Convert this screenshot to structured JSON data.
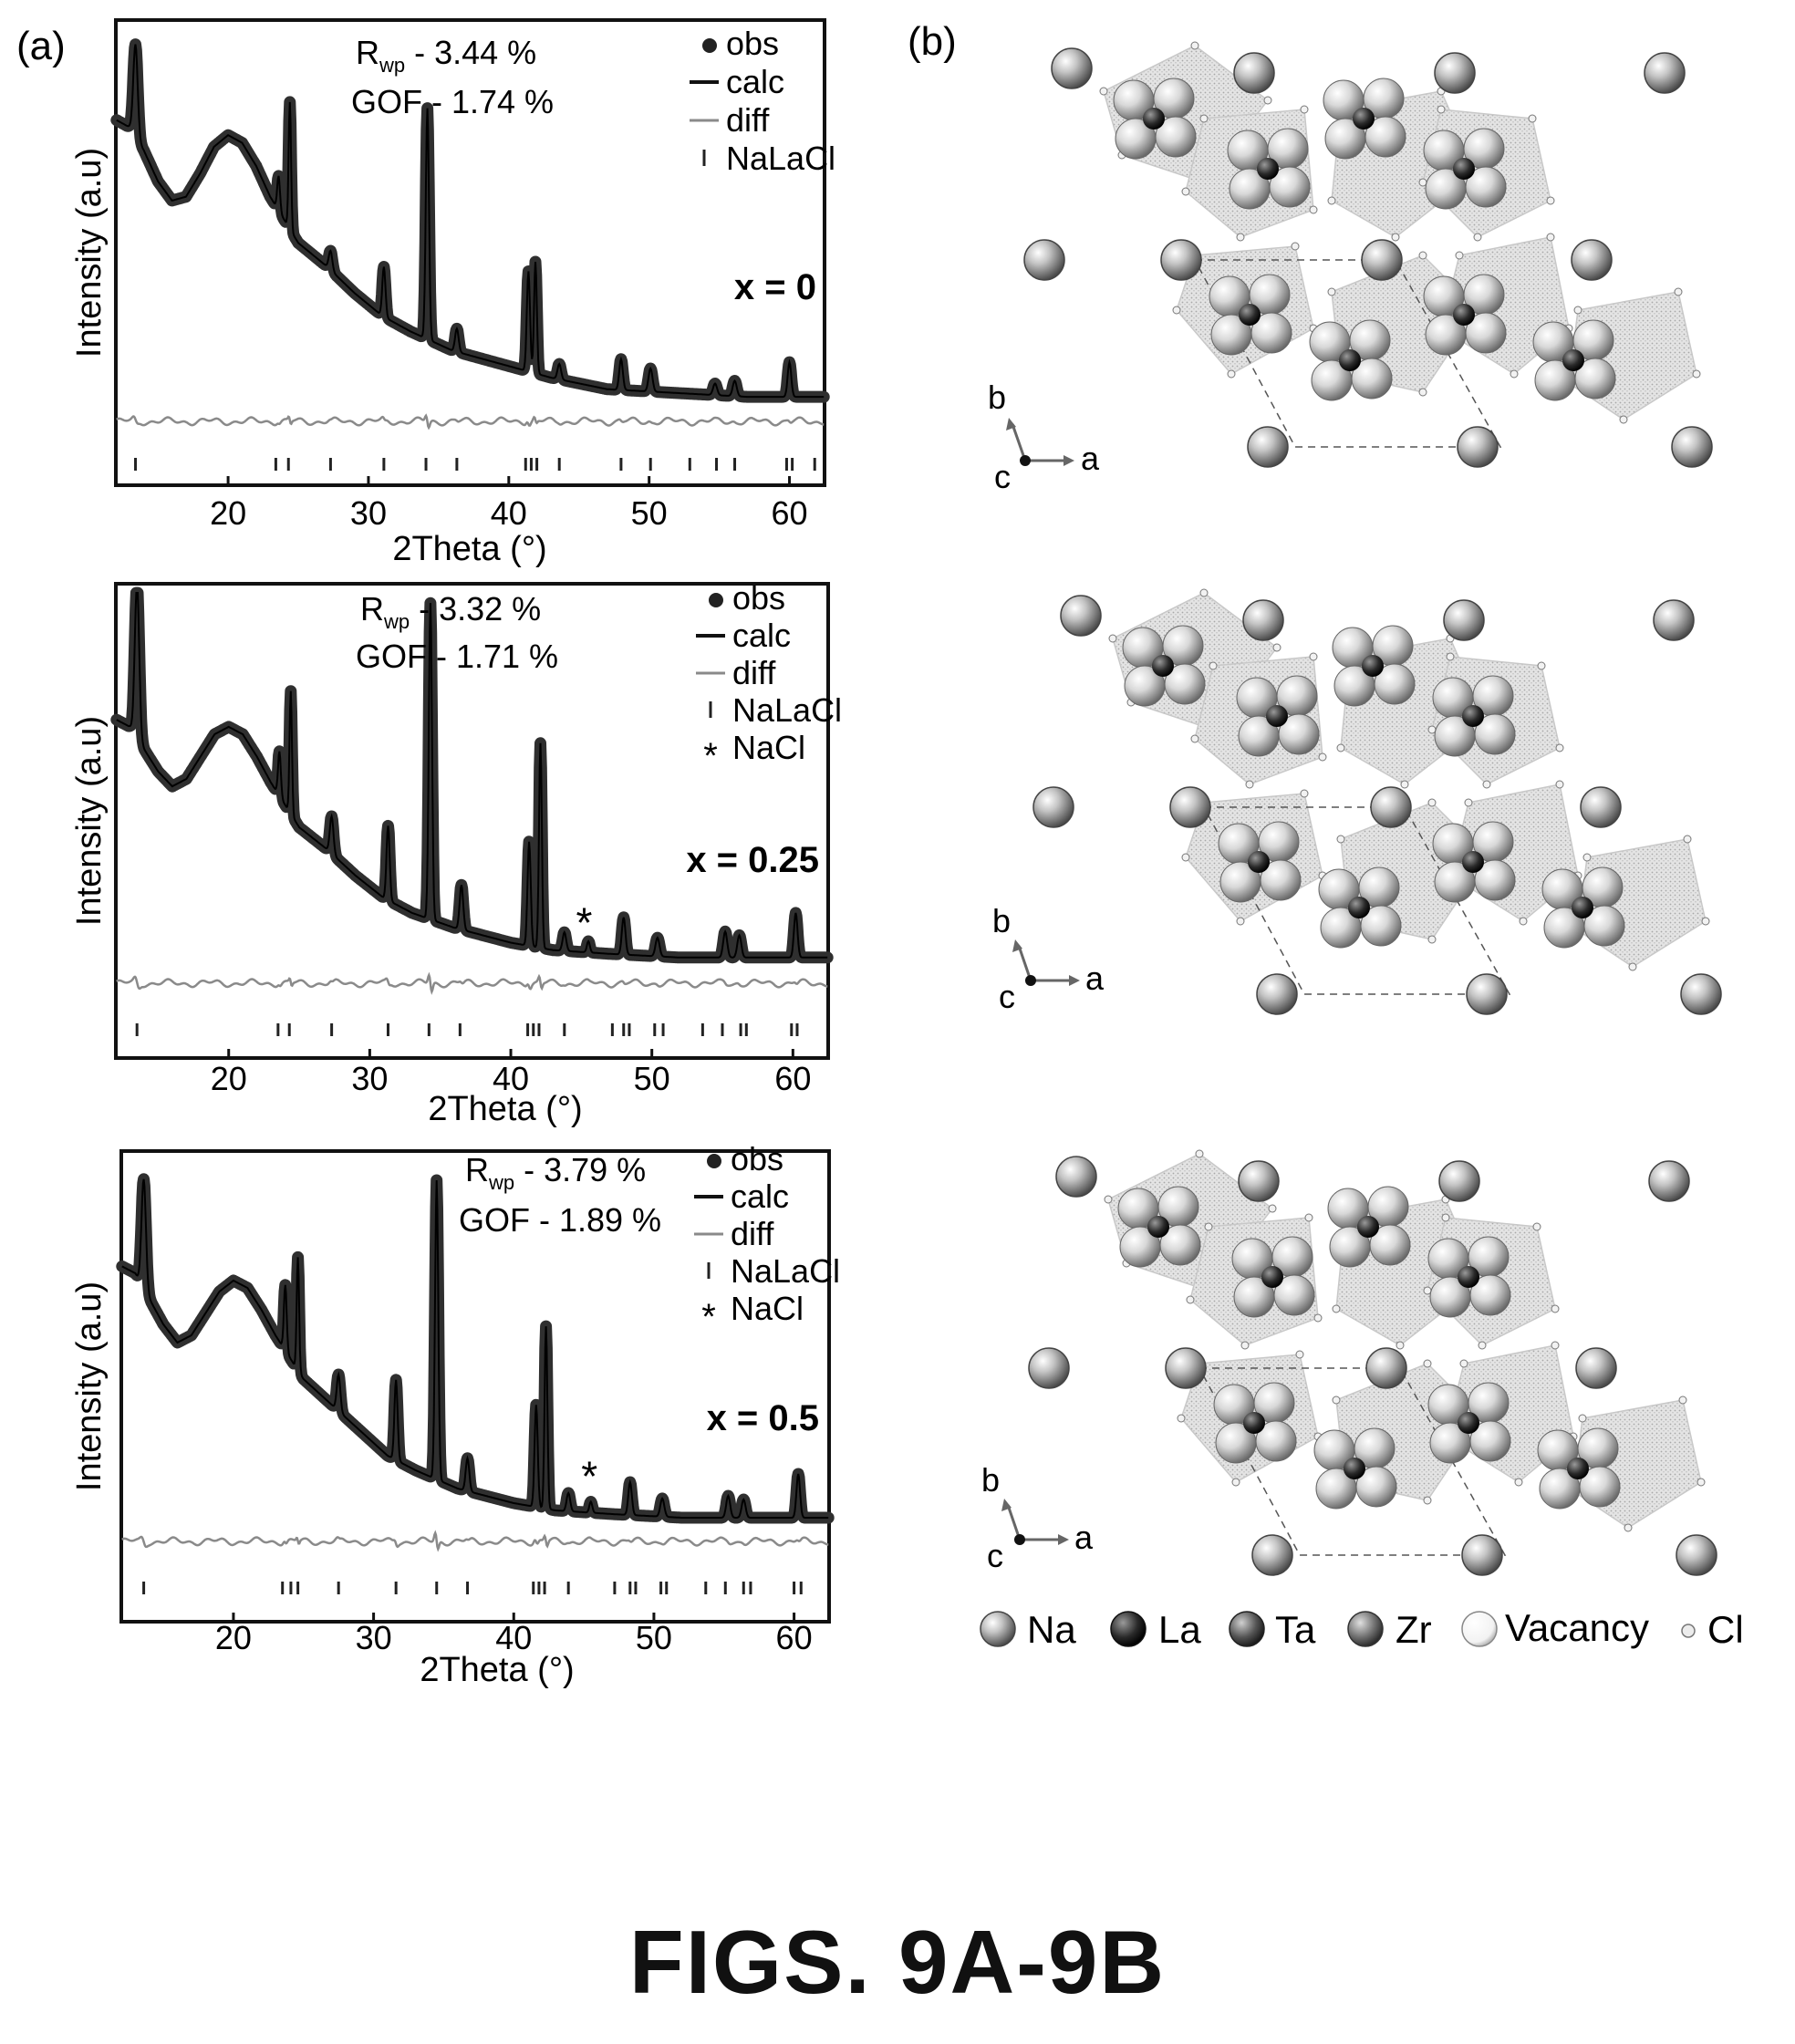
{
  "panel_a_label": "(a)",
  "panel_b_label": "(b)",
  "figure_caption": "FIGS. 9A-9B",
  "chart_data": [
    {
      "type": "line",
      "xlabel": "2Theta (°)",
      "ylabel": "Intensity (a.u)",
      "xlim": [
        12,
        62.5
      ],
      "xticks": [
        20,
        30,
        40,
        50,
        60
      ],
      "stats": {
        "rwp": "R",
        "rwp_sub": "wp",
        "rwp_value": " - 3.44 %",
        "gof": "GOF - 1.74 %"
      },
      "composition": "x = 0",
      "legend": [
        {
          "symbol": "dot",
          "label": "obs"
        },
        {
          "symbol": "line-dark",
          "label": "calc"
        },
        {
          "symbol": "line-light",
          "label": "diff"
        },
        {
          "symbol": "tick",
          "label": "NaLaCl"
        }
      ],
      "background": [
        [
          12,
          0.76
        ],
        [
          13,
          0.74
        ],
        [
          14,
          0.68
        ],
        [
          15,
          0.6
        ],
        [
          16,
          0.55
        ],
        [
          17,
          0.56
        ],
        [
          18,
          0.62
        ],
        [
          19,
          0.69
        ],
        [
          20,
          0.72
        ],
        [
          21,
          0.7
        ],
        [
          22,
          0.64
        ],
        [
          23,
          0.56
        ],
        [
          24,
          0.5
        ],
        [
          25,
          0.44
        ],
        [
          27,
          0.38
        ],
        [
          29,
          0.31
        ],
        [
          31,
          0.25
        ],
        [
          33,
          0.21
        ],
        [
          36,
          0.16
        ],
        [
          40,
          0.12
        ],
        [
          43,
          0.09
        ],
        [
          47,
          0.06
        ],
        [
          52,
          0.05
        ],
        [
          57,
          0.04
        ],
        [
          62.5,
          0.04
        ]
      ],
      "peaks": [
        [
          13.4,
          0.24,
          0.22
        ],
        [
          23.6,
          0.09,
          0.14
        ],
        [
          24.4,
          0.33,
          0.12
        ],
        [
          27.3,
          0.05,
          0.18
        ],
        [
          31.1,
          0.13,
          0.16
        ],
        [
          34.2,
          0.6,
          0.16
        ],
        [
          36.3,
          0.06,
          0.18
        ],
        [
          41.4,
          0.26,
          0.16
        ],
        [
          41.9,
          0.29,
          0.14
        ],
        [
          43.6,
          0.04,
          0.18
        ],
        [
          48.0,
          0.08,
          0.18
        ],
        [
          50.1,
          0.06,
          0.2
        ],
        [
          54.7,
          0.03,
          0.2
        ],
        [
          56.1,
          0.04,
          0.2
        ],
        [
          60.0,
          0.09,
          0.18
        ]
      ],
      "reflections": [
        13.4,
        23.4,
        24.3,
        27.3,
        31.1,
        34.1,
        36.3,
        41.2,
        41.6,
        42.0,
        43.6,
        48.0,
        50.1,
        52.9,
        54.8,
        56.1,
        59.8,
        60.2,
        61.8
      ],
      "impurity_peaks": []
    },
    {
      "type": "line",
      "xlabel": "2Theta (°)",
      "ylabel": "Intensity (a.u)",
      "xlim": [
        12,
        62.5
      ],
      "xticks": [
        20,
        30,
        40,
        50,
        60
      ],
      "stats": {
        "rwp": "R",
        "rwp_sub": "wp",
        "rwp_value": " - 3.32 %",
        "gof": "GOF - 1.71 %"
      },
      "composition": "x = 0.25",
      "legend": [
        {
          "symbol": "dot",
          "label": "obs"
        },
        {
          "symbol": "line-dark",
          "label": "calc"
        },
        {
          "symbol": "line-light",
          "label": "diff"
        },
        {
          "symbol": "tick",
          "label": "NaLaCl"
        },
        {
          "symbol": "star",
          "label": "NaCl"
        }
      ],
      "background": [
        [
          12,
          0.66
        ],
        [
          13,
          0.64
        ],
        [
          14,
          0.58
        ],
        [
          15,
          0.52
        ],
        [
          16,
          0.48
        ],
        [
          17,
          0.5
        ],
        [
          18,
          0.56
        ],
        [
          19,
          0.62
        ],
        [
          20,
          0.64
        ],
        [
          21,
          0.62
        ],
        [
          22,
          0.56
        ],
        [
          23,
          0.49
        ],
        [
          24,
          0.43
        ],
        [
          25,
          0.37
        ],
        [
          27,
          0.31
        ],
        [
          29,
          0.24
        ],
        [
          31,
          0.18
        ],
        [
          33,
          0.14
        ],
        [
          36,
          0.1
        ],
        [
          40,
          0.06
        ],
        [
          43,
          0.04
        ],
        [
          47,
          0.03
        ],
        [
          52,
          0.02
        ],
        [
          57,
          0.02
        ],
        [
          62.5,
          0.02
        ]
      ],
      "peaks": [
        [
          13.5,
          0.42,
          0.22
        ],
        [
          23.6,
          0.12,
          0.14
        ],
        [
          24.4,
          0.33,
          0.12
        ],
        [
          27.3,
          0.1,
          0.18
        ],
        [
          31.3,
          0.2,
          0.16
        ],
        [
          34.3,
          0.85,
          0.16
        ],
        [
          36.5,
          0.12,
          0.18
        ],
        [
          41.3,
          0.28,
          0.16
        ],
        [
          42.1,
          0.55,
          0.14
        ],
        [
          43.8,
          0.05,
          0.18
        ],
        [
          45.5,
          0.03,
          0.15
        ],
        [
          48.0,
          0.1,
          0.18
        ],
        [
          50.4,
          0.05,
          0.2
        ],
        [
          55.2,
          0.07,
          0.2
        ],
        [
          56.2,
          0.06,
          0.2
        ],
        [
          60.2,
          0.12,
          0.18
        ]
      ],
      "reflections": [
        13.5,
        23.5,
        24.3,
        27.3,
        31.3,
        34.2,
        36.4,
        41.2,
        41.6,
        42.0,
        43.8,
        47.2,
        48.0,
        48.4,
        50.2,
        50.8,
        53.6,
        55.0,
        56.3,
        56.7,
        59.9,
        60.3
      ],
      "impurity_peaks": [
        45.2
      ]
    },
    {
      "type": "line",
      "xlabel": "2Theta (°)",
      "ylabel": "Intensity (a.u)",
      "xlim": [
        12,
        62.5
      ],
      "xticks": [
        20,
        30,
        40,
        50,
        60
      ],
      "stats": {
        "rwp": "R",
        "rwp_sub": "wp",
        "rwp_value": " - 3.79 %",
        "gof": "GOF - 1.89 %"
      },
      "composition": "x = 0.5",
      "legend": [
        {
          "symbol": "dot",
          "label": "obs"
        },
        {
          "symbol": "line-dark",
          "label": "calc"
        },
        {
          "symbol": "line-light",
          "label": "diff"
        },
        {
          "symbol": "tick",
          "label": "NaLaCl"
        },
        {
          "symbol": "star",
          "label": "NaCl"
        }
      ],
      "background": [
        [
          12,
          0.71
        ],
        [
          13,
          0.69
        ],
        [
          14,
          0.62
        ],
        [
          15,
          0.55
        ],
        [
          16,
          0.5
        ],
        [
          17,
          0.52
        ],
        [
          18,
          0.58
        ],
        [
          19,
          0.64
        ],
        [
          20,
          0.67
        ],
        [
          21,
          0.65
        ],
        [
          22,
          0.59
        ],
        [
          23,
          0.52
        ],
        [
          24,
          0.46
        ],
        [
          25,
          0.4
        ],
        [
          27,
          0.33
        ],
        [
          29,
          0.26
        ],
        [
          31,
          0.19
        ],
        [
          33,
          0.15
        ],
        [
          36,
          0.1
        ],
        [
          40,
          0.06
        ],
        [
          43,
          0.04
        ],
        [
          47,
          0.03
        ],
        [
          52,
          0.02
        ],
        [
          57,
          0.02
        ],
        [
          62.5,
          0.02
        ]
      ],
      "peaks": [
        [
          13.6,
          0.3,
          0.22
        ],
        [
          23.7,
          0.18,
          0.14
        ],
        [
          24.6,
          0.31,
          0.12
        ],
        [
          27.5,
          0.1,
          0.18
        ],
        [
          31.6,
          0.22,
          0.16
        ],
        [
          34.5,
          0.82,
          0.16
        ],
        [
          36.7,
          0.09,
          0.18
        ],
        [
          41.6,
          0.28,
          0.16
        ],
        [
          42.3,
          0.5,
          0.14
        ],
        [
          43.9,
          0.05,
          0.18
        ],
        [
          45.5,
          0.03,
          0.15
        ],
        [
          48.3,
          0.09,
          0.18
        ],
        [
          50.6,
          0.05,
          0.2
        ],
        [
          55.3,
          0.06,
          0.2
        ],
        [
          56.4,
          0.05,
          0.2
        ],
        [
          60.3,
          0.12,
          0.18
        ]
      ],
      "reflections": [
        13.6,
        23.5,
        24.1,
        24.6,
        27.5,
        31.6,
        34.5,
        36.7,
        41.4,
        41.8,
        42.2,
        43.9,
        47.2,
        48.3,
        48.7,
        50.5,
        50.9,
        53.7,
        55.1,
        56.4,
        56.9,
        60.0,
        60.5
      ],
      "impurity_peaks": [
        45.4
      ]
    }
  ],
  "structure_views": [
    {
      "axes": {
        "b": "b",
        "c": "c",
        "a": "a"
      }
    },
    {
      "axes": {
        "b": "b",
        "c": "c",
        "a": "a"
      }
    },
    {
      "axes": {
        "b": "b",
        "c": "c",
        "a": "a"
      }
    }
  ],
  "atom_legend": [
    {
      "label": "Na",
      "color": "#9a9a9a"
    },
    {
      "label": "La",
      "color": "#1e1e1e"
    },
    {
      "label": "Ta",
      "color": "#505050"
    },
    {
      "label": "Zr",
      "color": "#707070"
    },
    {
      "label": "Vacancy",
      "color": "#f2f2f2"
    },
    {
      "label": "Cl",
      "color": "#dcdcdc"
    }
  ]
}
